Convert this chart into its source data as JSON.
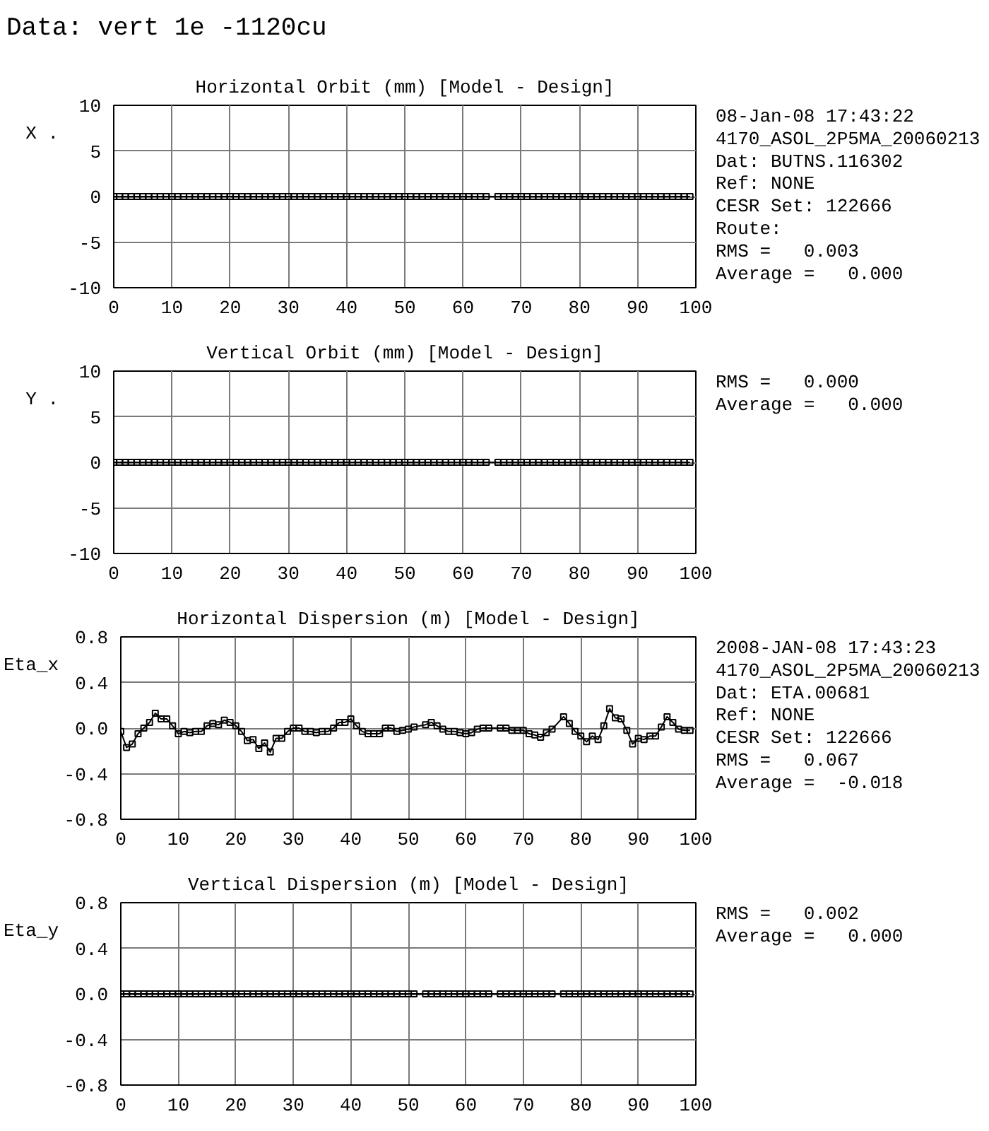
{
  "chart_data": [
    {
      "type": "line",
      "title": "Data: vert 1e -1120cu",
      "subtitle": "Horizontal Orbit (mm) [Model - Design]",
      "ylabel": "X .",
      "x": [
        0,
        1,
        2,
        3,
        4,
        5,
        6,
        7,
        8,
        9,
        10,
        11,
        12,
        13,
        14,
        15,
        16,
        17,
        18,
        19,
        20,
        21,
        22,
        23,
        24,
        25,
        26,
        27,
        28,
        29,
        30,
        31,
        32,
        33,
        34,
        35,
        36,
        37,
        38,
        39,
        40,
        41,
        42,
        43,
        44,
        45,
        46,
        47,
        48,
        49,
        50,
        51,
        52,
        53,
        54,
        55,
        56,
        57,
        58,
        59,
        60,
        61,
        62,
        63,
        64,
        66,
        67,
        68,
        69,
        70,
        71,
        72,
        73,
        74,
        75,
        76,
        77,
        78,
        79,
        80,
        81,
        82,
        83,
        84,
        85,
        86,
        87,
        88,
        89,
        90,
        91,
        92,
        93,
        94,
        95,
        96,
        97,
        98,
        99
      ],
      "series": [
        {
          "color": "#000000",
          "values": [
            0,
            0,
            0,
            0,
            0,
            0,
            0,
            0,
            0,
            0,
            0,
            0,
            0,
            0,
            0,
            0,
            0,
            0,
            0,
            0,
            0,
            0,
            0,
            0,
            0,
            0,
            0,
            0,
            0,
            0,
            0,
            0,
            0,
            0,
            0,
            0,
            0,
            0,
            0,
            0,
            0,
            0,
            0,
            0,
            0,
            0,
            0,
            0,
            0,
            0,
            0,
            0,
            0,
            0,
            0,
            0,
            0,
            0,
            0,
            0,
            0,
            0,
            0,
            0,
            0,
            0,
            0,
            0,
            0,
            0,
            0,
            0,
            0,
            0,
            0,
            0,
            0,
            0,
            0,
            0,
            0,
            0,
            0,
            0,
            0,
            0,
            0,
            0,
            0,
            0,
            0,
            0,
            0,
            0,
            0,
            0,
            0,
            0,
            0
          ]
        }
      ],
      "xlim": [
        0,
        100
      ],
      "ylim": [
        -10,
        10
      ],
      "xticks": [
        0,
        10,
        20,
        30,
        40,
        50,
        60,
        70,
        80,
        90,
        100
      ],
      "yticks": [
        -10,
        -5,
        0,
        5,
        10
      ],
      "grid": true,
      "marker": "square",
      "annotations": [
        "08-Jan-08 17:43:22",
        "4170_ASOL_2P5MA_20060213",
        "Dat: BUTNS.116302",
        "Ref: NONE",
        "CESR Set: 122666",
        "Route:",
        "RMS =   0.003",
        "Average =   0.000"
      ]
    },
    {
      "type": "line",
      "title": "Vertical Orbit (mm) [Model - Design]",
      "ylabel": "Y .",
      "x": [
        0,
        1,
        2,
        3,
        4,
        5,
        6,
        7,
        8,
        9,
        10,
        11,
        12,
        13,
        14,
        15,
        16,
        17,
        18,
        19,
        20,
        21,
        22,
        23,
        24,
        25,
        26,
        27,
        28,
        29,
        30,
        31,
        32,
        33,
        34,
        35,
        36,
        37,
        38,
        39,
        40,
        41,
        42,
        43,
        44,
        45,
        46,
        47,
        48,
        49,
        50,
        51,
        52,
        53,
        54,
        55,
        56,
        57,
        58,
        59,
        60,
        61,
        62,
        63,
        64,
        66,
        67,
        68,
        69,
        70,
        71,
        72,
        73,
        74,
        75,
        76,
        77,
        78,
        79,
        80,
        81,
        82,
        83,
        84,
        85,
        86,
        87,
        88,
        89,
        90,
        91,
        92,
        93,
        94,
        95,
        96,
        97,
        98,
        99
      ],
      "series": [
        {
          "color": "#000000",
          "values": [
            0,
            0,
            0,
            0,
            0,
            0,
            0,
            0,
            0,
            0,
            0,
            0,
            0,
            0,
            0,
            0,
            0,
            0,
            0,
            0,
            0,
            0,
            0,
            0,
            0,
            0,
            0,
            0,
            0,
            0,
            0,
            0,
            0,
            0,
            0,
            0,
            0,
            0,
            0,
            0,
            0,
            0,
            0,
            0,
            0,
            0,
            0,
            0,
            0,
            0,
            0,
            0,
            0,
            0,
            0,
            0,
            0,
            0,
            0,
            0,
            0,
            0,
            0,
            0,
            0,
            0,
            0,
            0,
            0,
            0,
            0,
            0,
            0,
            0,
            0,
            0,
            0,
            0,
            0,
            0,
            0,
            0,
            0,
            0,
            0,
            0,
            0,
            0,
            0,
            0,
            0,
            0,
            0,
            0,
            0,
            0,
            0,
            0,
            0
          ]
        }
      ],
      "xlim": [
        0,
        100
      ],
      "ylim": [
        -10,
        10
      ],
      "xticks": [
        0,
        10,
        20,
        30,
        40,
        50,
        60,
        70,
        80,
        90,
        100
      ],
      "yticks": [
        -10,
        -5,
        0,
        5,
        10
      ],
      "grid": true,
      "marker": "square",
      "annotations": [
        "RMS =   0.000",
        "Average =   0.000"
      ]
    },
    {
      "type": "line",
      "title": "Horizontal Dispersion (m) [Model - Design]",
      "ylabel": "Eta_x",
      "x": [
        0,
        1,
        2,
        3,
        4,
        5,
        6,
        7,
        8,
        9,
        10,
        11,
        12,
        13,
        14,
        15,
        16,
        17,
        18,
        19,
        20,
        21,
        22,
        23,
        24,
        25,
        26,
        27,
        28,
        29,
        30,
        31,
        32,
        33,
        34,
        35,
        36,
        37,
        38,
        39,
        40,
        41,
        42,
        43,
        44,
        45,
        46,
        47,
        48,
        49,
        50,
        51,
        53,
        54,
        55,
        56,
        57,
        58,
        59,
        60,
        61,
        62,
        63,
        64,
        66,
        67,
        68,
        69,
        70,
        71,
        72,
        73,
        74,
        75,
        77,
        78,
        79,
        80,
        81,
        82,
        83,
        84,
        85,
        86,
        87,
        88,
        89,
        90,
        91,
        92,
        93,
        94,
        95,
        96,
        97,
        98,
        99
      ],
      "series": [
        {
          "color": "#000000",
          "values": [
            -0.03,
            -0.17,
            -0.14,
            -0.05,
            0.0,
            0.05,
            0.13,
            0.08,
            0.08,
            0.02,
            -0.05,
            -0.03,
            -0.04,
            -0.03,
            -0.03,
            0.02,
            0.04,
            0.03,
            0.07,
            0.05,
            0.02,
            -0.03,
            -0.11,
            -0.1,
            -0.18,
            -0.13,
            -0.21,
            -0.09,
            -0.09,
            -0.03,
            0.0,
            0.0,
            -0.03,
            -0.03,
            -0.04,
            -0.03,
            -0.03,
            0.0,
            0.05,
            0.05,
            0.08,
            0.02,
            -0.03,
            -0.05,
            -0.05,
            -0.05,
            0.0,
            0.0,
            -0.03,
            -0.02,
            -0.01,
            0.01,
            0.03,
            0.05,
            0.02,
            -0.01,
            -0.03,
            -0.03,
            -0.04,
            -0.05,
            -0.04,
            -0.01,
            0.0,
            0.0,
            0.0,
            0.0,
            -0.02,
            -0.02,
            -0.02,
            -0.05,
            -0.06,
            -0.08,
            -0.04,
            -0.01,
            0.1,
            0.04,
            -0.03,
            -0.07,
            -0.12,
            -0.07,
            -0.1,
            0.02,
            0.17,
            0.09,
            0.08,
            -0.02,
            -0.14,
            -0.09,
            -0.1,
            -0.07,
            -0.07,
            0.01,
            0.1,
            0.05,
            -0.01,
            -0.02,
            -0.02
          ]
        }
      ],
      "xlim": [
        0,
        100
      ],
      "ylim": [
        -0.8,
        0.8
      ],
      "xticks": [
        0,
        10,
        20,
        30,
        40,
        50,
        60,
        70,
        80,
        90,
        100
      ],
      "yticks": [
        -0.8,
        -0.4,
        {
          "value": 0,
          "label": "0.0"
        },
        0.4,
        0.8
      ],
      "grid": true,
      "marker": "square",
      "annotations": [
        "2008-JAN-08 17:43:23",
        "4170_ASOL_2P5MA_20060213",
        "Dat: ETA.00681",
        "Ref: NONE",
        "CESR Set: 122666",
        "RMS =   0.067",
        "Average =  -0.018"
      ]
    },
    {
      "type": "line",
      "title": "Vertical Dispersion (m) [Model - Design]",
      "ylabel": "Eta_y",
      "x": [
        0,
        1,
        2,
        3,
        4,
        5,
        6,
        7,
        8,
        9,
        10,
        11,
        12,
        13,
        14,
        15,
        16,
        17,
        18,
        19,
        20,
        21,
        22,
        23,
        24,
        25,
        26,
        27,
        28,
        29,
        30,
        31,
        32,
        33,
        34,
        35,
        36,
        37,
        38,
        39,
        40,
        41,
        42,
        43,
        44,
        45,
        46,
        47,
        48,
        49,
        50,
        51,
        53,
        54,
        55,
        56,
        57,
        58,
        59,
        60,
        61,
        62,
        63,
        64,
        66,
        67,
        68,
        69,
        70,
        71,
        72,
        73,
        74,
        75,
        77,
        78,
        79,
        80,
        81,
        82,
        83,
        84,
        85,
        86,
        87,
        88,
        89,
        90,
        91,
        92,
        93,
        94,
        95,
        96,
        97,
        98,
        99
      ],
      "series": [
        {
          "color": "#000000",
          "values": [
            0,
            0,
            0,
            0,
            0,
            0,
            0,
            0,
            0,
            0,
            0,
            0,
            0,
            0,
            0,
            0,
            0,
            0,
            0,
            0,
            0,
            0,
            0,
            0,
            0,
            0,
            0,
            0,
            0,
            0,
            0,
            0,
            0,
            0,
            0,
            0,
            0,
            0,
            0,
            0,
            0,
            0,
            0,
            0,
            0,
            0,
            0,
            0,
            0,
            0,
            0,
            0,
            0,
            0,
            0,
            0,
            0,
            0,
            0,
            0,
            0,
            0,
            0,
            0,
            0,
            0,
            0,
            0,
            0,
            0,
            0,
            0,
            0,
            0,
            0,
            0,
            0,
            0,
            0,
            0,
            0,
            0,
            0,
            0,
            0,
            0,
            0,
            0,
            0,
            0,
            0,
            0,
            0,
            0,
            0,
            0,
            0
          ]
        }
      ],
      "xlim": [
        0,
        100
      ],
      "ylim": [
        -0.8,
        0.8
      ],
      "xticks": [
        0,
        10,
        20,
        30,
        40,
        50,
        60,
        70,
        80,
        90,
        100
      ],
      "yticks": [
        -0.8,
        -0.4,
        {
          "value": 0,
          "label": "0.0"
        },
        0.4,
        0.8
      ],
      "grid": true,
      "marker": "square",
      "annotations": [
        "RMS =   0.002",
        "Average =   0.000"
      ]
    }
  ]
}
